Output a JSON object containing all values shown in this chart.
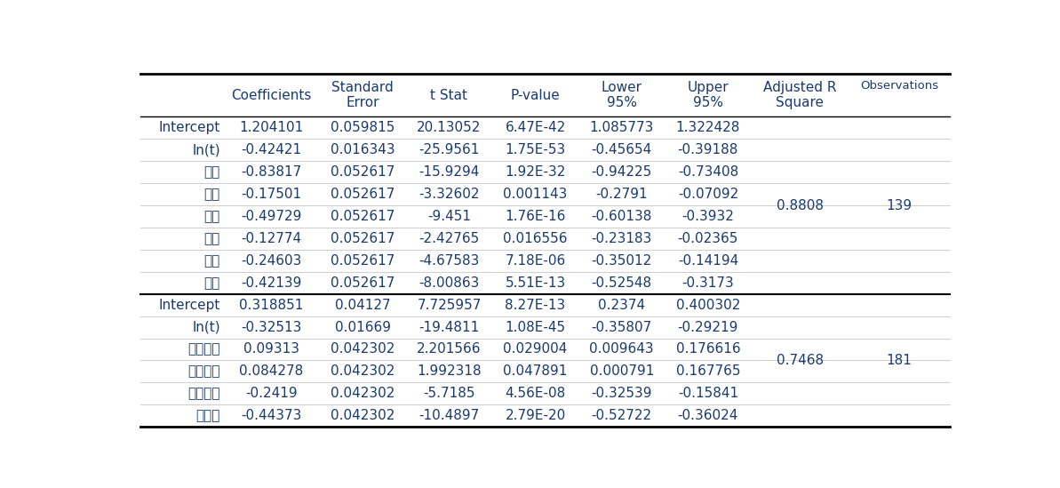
{
  "headers_left": [
    "",
    "Coefficients",
    "Standard\nError",
    "t Stat",
    "P-value",
    "Lower\n95%",
    "Upper\n95%"
  ],
  "header_adjr": "Adjusted R\nSquare",
  "header_obs": "Observations",
  "section1": {
    "rows": [
      [
        "Intercept",
        "1.204101",
        "0.059815",
        "20.13052",
        "6.47E-42",
        "1.085773",
        "1.322428"
      ],
      [
        "ln(t)",
        "-0.42421",
        "0.016343",
        "-25.9561",
        "1.75E-53",
        "-0.45654",
        "-0.39188"
      ],
      [
        "서울",
        "-0.83817",
        "0.052617",
        "-15.9294",
        "1.92E-32",
        "-0.94225",
        "-0.73408"
      ],
      [
        "부산",
        "-0.17501",
        "0.052617",
        "-3.32602",
        "0.001143",
        "-0.2791",
        "-0.07092"
      ],
      [
        "대구",
        "-0.49729",
        "0.052617",
        "-9.451",
        "1.76E-16",
        "-0.60138",
        "-0.3932"
      ],
      [
        "인천",
        "-0.12774",
        "0.052617",
        "-2.42765",
        "0.016556",
        "-0.23183",
        "-0.02365"
      ],
      [
        "광주",
        "-0.24603",
        "0.052617",
        "-4.67583",
        "7.18E-06",
        "-0.35012",
        "-0.14194"
      ],
      [
        "대전",
        "-0.42139",
        "0.052617",
        "-8.00863",
        "5.51E-13",
        "-0.52548",
        "-0.3173"
      ]
    ],
    "adj_r": "0.8808",
    "obs": "139"
  },
  "section2": {
    "rows": [
      [
        "Intercept",
        "0.318851",
        "0.04127",
        "7.725957",
        "8.27E-13",
        "0.2374",
        "0.400302"
      ],
      [
        "ln(t)",
        "-0.32513",
        "0.01669",
        "-19.4811",
        "1.08E-45",
        "-0.35807",
        "-0.29219"
      ],
      [
        "충청북도",
        "0.09313",
        "0.042302",
        "2.201566",
        "0.029004",
        "0.009643",
        "0.176616"
      ],
      [
        "충청남도",
        "0.084278",
        "0.042302",
        "1.992318",
        "0.047891",
        "0.000791",
        "0.167765"
      ],
      [
        "전라남도",
        "-0.2419",
        "0.042302",
        "-5.7185",
        "4.56E-08",
        "-0.32539",
        "-0.15841"
      ],
      [
        "제주도",
        "-0.44373",
        "0.042302",
        "-10.4897",
        "2.79E-20",
        "-0.52722",
        "-0.36024"
      ]
    ],
    "adj_r": "0.7468",
    "obs": "181"
  },
  "text_color": "#1a3a6b",
  "line_color": "#000000",
  "font_size": 11.0,
  "header_font_size": 11.0,
  "background_color": "#ffffff"
}
